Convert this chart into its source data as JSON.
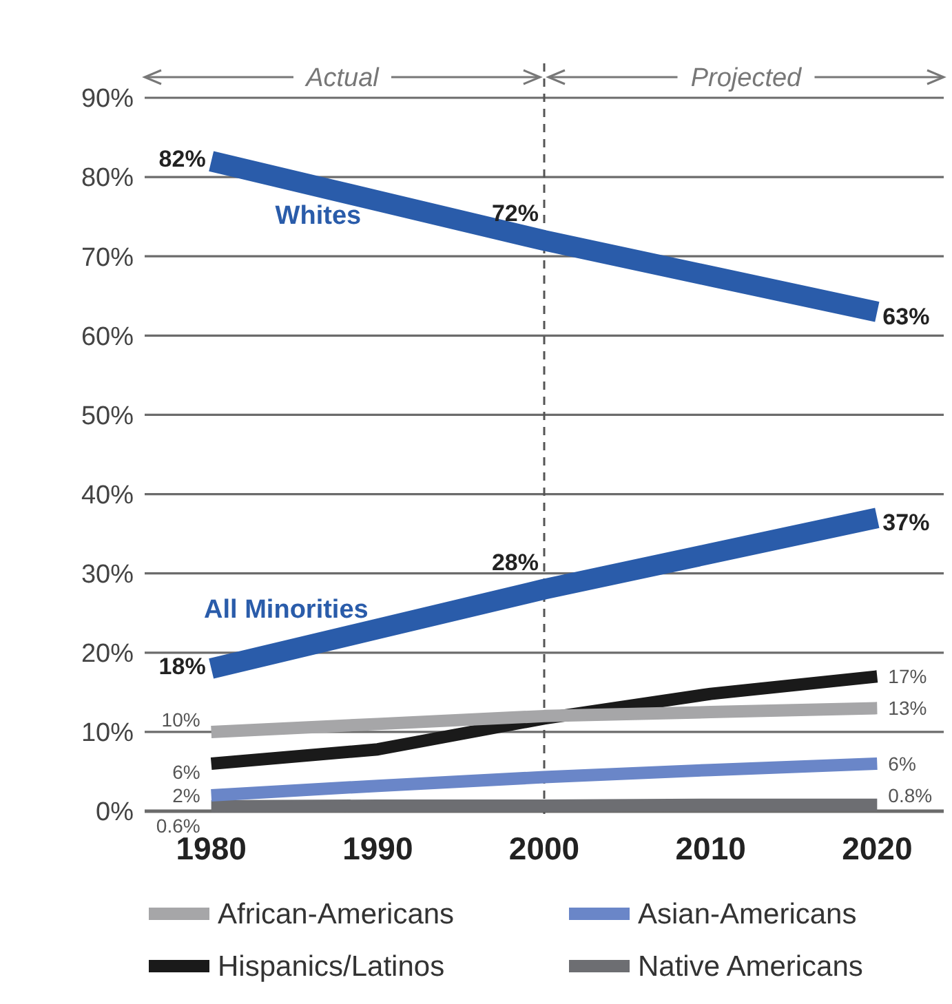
{
  "chart_data": {
    "type": "line",
    "x": [
      1980,
      1990,
      2000,
      2010,
      2020
    ],
    "xlim": [
      1976,
      2024
    ],
    "xticks": [
      1980,
      1990,
      2000,
      2010,
      2020
    ],
    "ylim": [
      0,
      90
    ],
    "yticks": [
      {
        "value": 0,
        "label": "0%"
      },
      {
        "value": 10,
        "label": "10%"
      },
      {
        "value": 20,
        "label": "20%"
      },
      {
        "value": 30,
        "label": "30%"
      },
      {
        "value": 40,
        "label": "40%"
      },
      {
        "value": 50,
        "label": "50%"
      },
      {
        "value": 60,
        "label": "60%"
      },
      {
        "value": 70,
        "label": "70%"
      },
      {
        "value": 80,
        "label": "80%"
      },
      {
        "value": 90,
        "label": "90%"
      }
    ],
    "grid": "y",
    "legend": "bottom",
    "marker": "none",
    "line_style": "solid",
    "series": [
      {
        "name": "Whites",
        "color": "#2a5caa",
        "values": [
          82,
          77,
          72,
          67.5,
          63
        ],
        "value_labels": [
          "82%",
          null,
          "72%",
          null,
          "63%"
        ]
      },
      {
        "name": "All Minorities",
        "color": "#2a5caa",
        "values": [
          18,
          23,
          28,
          32.5,
          37
        ],
        "value_labels": [
          "18%",
          null,
          "28%",
          null,
          "37%"
        ]
      },
      {
        "name": "African-Americans",
        "color": "#a6a6a8",
        "values": [
          10,
          11,
          12,
          12.5,
          13
        ],
        "value_labels": [
          "10%",
          null,
          null,
          null,
          "13%"
        ]
      },
      {
        "name": "Hispanics/Latinos",
        "color": "#1a1a1a",
        "values": [
          6,
          7.8,
          11.7,
          14.8,
          17
        ],
        "value_labels": [
          "6%",
          null,
          null,
          null,
          "17%"
        ]
      },
      {
        "name": "Asian-Americans",
        "color": "#6a86c8",
        "values": [
          2,
          3.2,
          4.3,
          5.2,
          6
        ],
        "value_labels": [
          "2%",
          null,
          null,
          null,
          "6%"
        ]
      },
      {
        "name": "Native Americans",
        "color": "#6d6e72",
        "values": [
          0.6,
          0.7,
          0.7,
          0.8,
          0.8
        ],
        "value_labels": [
          "0.6%",
          null,
          null,
          null,
          "0.8%"
        ]
      }
    ],
    "ref_lines": [
      {
        "axis": "x",
        "value": 2000,
        "color": "#555555",
        "line_style": "dashed"
      }
    ],
    "annotations": [
      "Actual",
      "Projected"
    ]
  }
}
